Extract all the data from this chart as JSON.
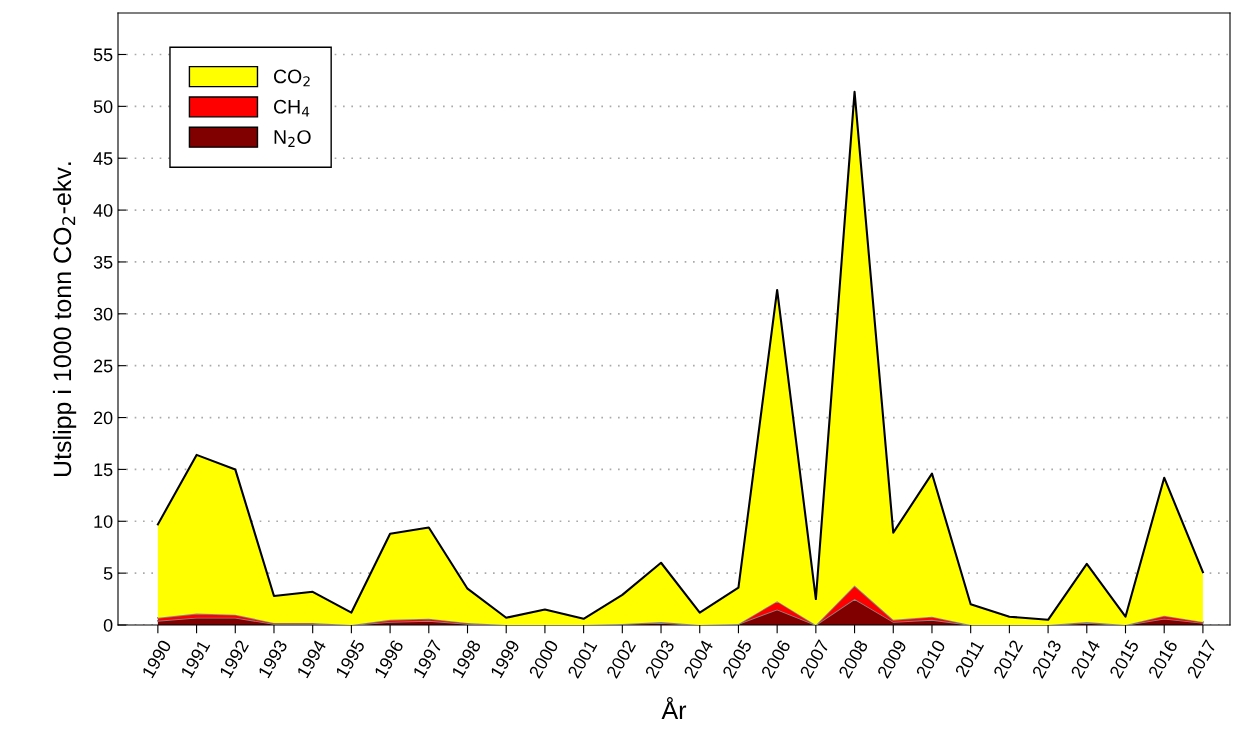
{
  "chart_data": {
    "type": "area",
    "stacked": true,
    "xlabel": "År",
    "ylabel": "Utslipp i 1000 tonn CO$_{2}$-ekv.",
    "categories": [
      "1990",
      "1991",
      "1992",
      "1993",
      "1994",
      "1995",
      "1996",
      "1997",
      "1998",
      "1999",
      "2000",
      "2001",
      "2002",
      "2003",
      "2004",
      "2005",
      "2006",
      "2007",
      "2008",
      "2009",
      "2010",
      "2011",
      "2012",
      "2013",
      "2014",
      "2015",
      "2016",
      "2017"
    ],
    "series": [
      {
        "name": "N$_{2}$O",
        "color": "#800000",
        "values": [
          0.4,
          0.7,
          0.7,
          0.1,
          0.1,
          0.0,
          0.3,
          0.4,
          0.1,
          0.0,
          0.0,
          0.0,
          0.1,
          0.2,
          0.0,
          0.1,
          1.5,
          0.0,
          2.5,
          0.3,
          0.5,
          0.0,
          0.0,
          0.0,
          0.2,
          0.0,
          0.6,
          0.2
        ]
      },
      {
        "name": "CH$_{4}$",
        "color": "#ff0000",
        "values": [
          0.3,
          0.4,
          0.3,
          0.1,
          0.1,
          0.0,
          0.2,
          0.2,
          0.1,
          0.0,
          0.0,
          0.0,
          0.0,
          0.1,
          0.0,
          0.0,
          0.8,
          0.0,
          1.3,
          0.2,
          0.3,
          0.0,
          0.0,
          0.0,
          0.1,
          0.0,
          0.3,
          0.1
        ]
      },
      {
        "name": "CO$_{2}$",
        "color": "#ffff00",
        "values": [
          9.0,
          15.3,
          14.0,
          2.6,
          3.0,
          1.2,
          8.3,
          8.8,
          3.3,
          0.7,
          1.5,
          0.6,
          2.8,
          5.7,
          1.2,
          3.5,
          30.0,
          2.5,
          47.6,
          8.4,
          13.8,
          2.0,
          0.8,
          0.5,
          5.6,
          0.8,
          13.3,
          4.8
        ]
      }
    ],
    "ylim": [
      0,
      59
    ],
    "yticks": [
      0,
      5,
      10,
      15,
      20,
      25,
      30,
      35,
      40,
      45,
      50,
      55
    ],
    "grid": "y",
    "legend": "top left"
  }
}
